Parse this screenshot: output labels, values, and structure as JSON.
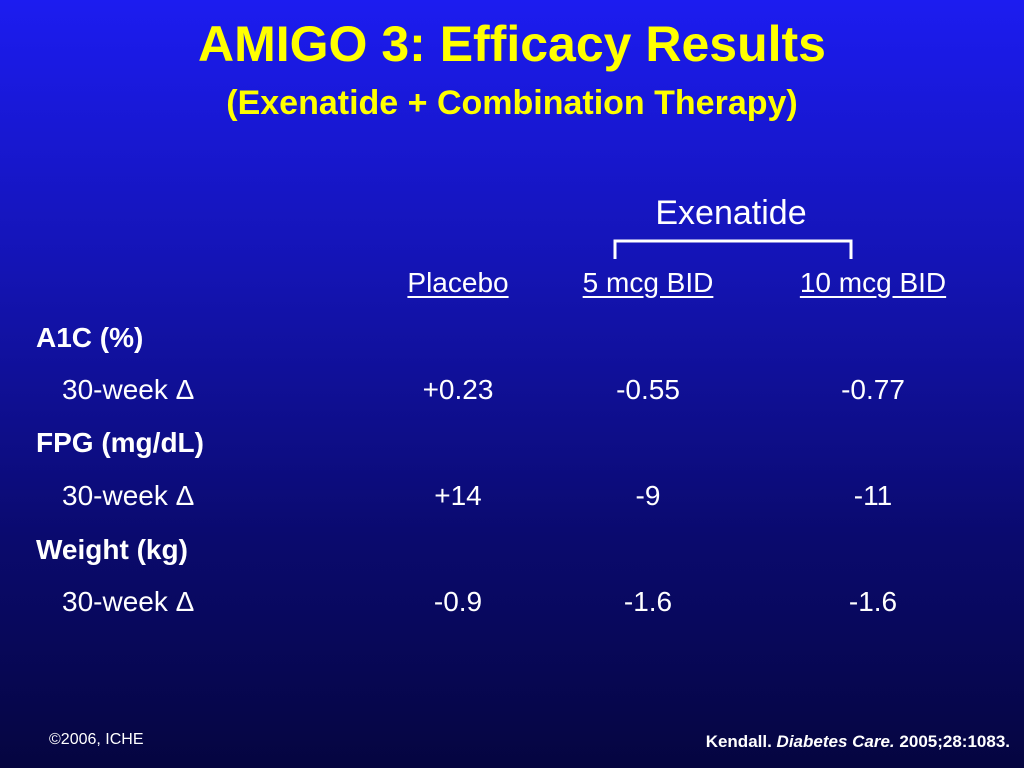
{
  "slide": {
    "title": "AMIGO 3: Efficacy Results",
    "subtitle": "(Exenatide + Combination Therapy)"
  },
  "table": {
    "group_header": "Exenatide",
    "columns": [
      "Placebo",
      "5 mcg BID",
      "10 mcg BID"
    ],
    "rows": [
      {
        "category": "A1C (%)",
        "label": "30-week Δ",
        "values": [
          "+0.23",
          "-0.55",
          "-0.77"
        ]
      },
      {
        "category": "FPG (mg/dL)",
        "label": "30-week Δ",
        "values": [
          "+14",
          "-9",
          "-11"
        ]
      },
      {
        "category": "Weight (kg)",
        "label": "30-week Δ",
        "values": [
          "-0.9",
          "-1.6",
          "-1.6"
        ]
      }
    ]
  },
  "footer": {
    "copyright": "©2006, ICHE",
    "citation_author": "Kendall.",
    "citation_journal": "Diabetes Care.",
    "citation_ref": "2005;28:1083."
  },
  "colors": {
    "title": "#ffff00",
    "text": "#ffffff",
    "background_top": "#1c1cf0",
    "background_bottom": "#050540"
  }
}
